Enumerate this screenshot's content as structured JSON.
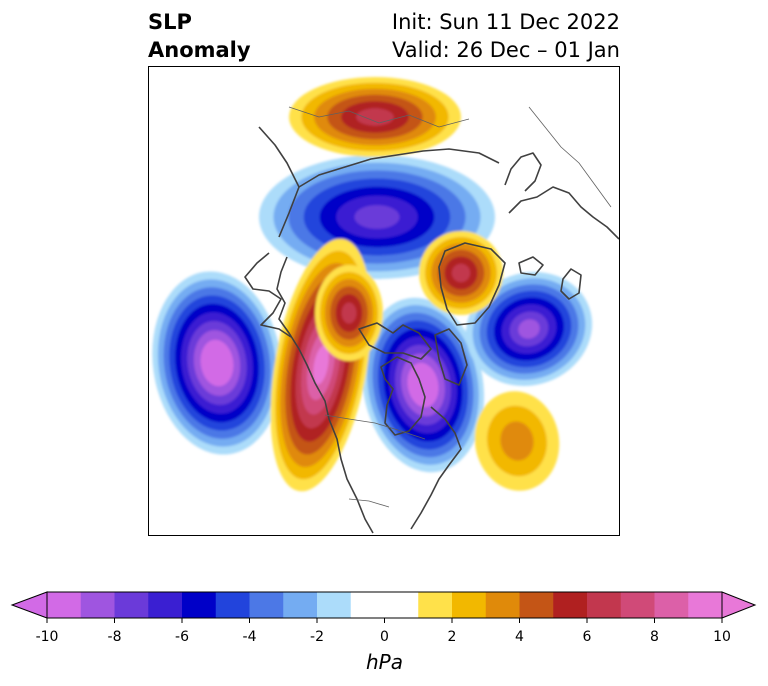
{
  "title": {
    "left_line1": "SLP",
    "left_line2": "Anomaly",
    "right_line1": "Init: Sun 11 Dec 2022",
    "right_line2": "Valid: 26 Dec – 01 Jan"
  },
  "colorbar": {
    "unit": "hPa",
    "extend": "both",
    "levels": [
      -10,
      -9,
      -8,
      -7,
      -6,
      -5,
      -4,
      -3,
      -2,
      -1,
      1,
      2,
      3,
      4,
      5,
      6,
      7,
      8,
      9,
      10
    ],
    "colors": [
      "#d26ae6",
      "#9f55e0",
      "#6b3ad9",
      "#3a1fd2",
      "#0000c8",
      "#2244dc",
      "#4c78e6",
      "#74acf2",
      "#acdcfa",
      "#ffffff",
      "#ffe14a",
      "#f2b800",
      "#e08a0a",
      "#c45516",
      "#b02020",
      "#c2374e",
      "#d04a78",
      "#dc60a8",
      "#e878d8"
    ],
    "under_color": "#d26ae6",
    "over_color": "#e878d8",
    "ticks": [
      {
        "value": -10,
        "label": "-10"
      },
      {
        "value": -8,
        "label": "-8"
      },
      {
        "value": -6,
        "label": "-6"
      },
      {
        "value": -4,
        "label": "-4"
      },
      {
        "value": -2,
        "label": "-2"
      },
      {
        "value": 0,
        "label": "0"
      },
      {
        "value": 2,
        "label": "2"
      },
      {
        "value": 4,
        "label": "4"
      },
      {
        "value": 6,
        "label": "6"
      },
      {
        "value": 8,
        "label": "8"
      },
      {
        "value": 10,
        "label": "10"
      }
    ]
  },
  "map": {
    "projection": "north polar stereographic",
    "anomaly_centers": [
      {
        "name": "north-pacific-low",
        "sign": "negative",
        "peak_hpa": -10
      },
      {
        "name": "hudson-bay-low",
        "sign": "negative",
        "peak_hpa": -10
      },
      {
        "name": "eurasian-arctic-low",
        "sign": "negative",
        "peak_hpa": -7
      },
      {
        "name": "north-atlantic-low",
        "sign": "negative",
        "peak_hpa": -8
      },
      {
        "name": "western-north-america-high",
        "sign": "positive",
        "peak_hpa": 9
      },
      {
        "name": "alaska-high",
        "sign": "positive",
        "peak_hpa": 6
      },
      {
        "name": "siberia-high",
        "sign": "positive",
        "peak_hpa": 6
      },
      {
        "name": "greenland-high",
        "sign": "positive",
        "peak_hpa": 6
      },
      {
        "name": "central-atlantic-high",
        "sign": "positive",
        "peak_hpa": 3
      }
    ]
  }
}
